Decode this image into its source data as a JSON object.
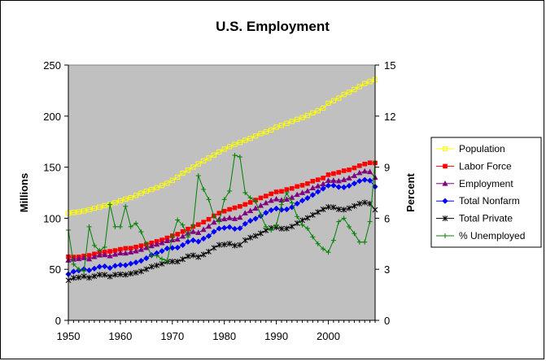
{
  "chart_data": {
    "type": "line",
    "title": "U.S. Employment",
    "xlabel": "",
    "ylabel": "Millions",
    "y2label": "Percent",
    "xlim": [
      1950,
      2009
    ],
    "ylim": [
      0,
      250
    ],
    "y2lim": [
      0,
      15
    ],
    "x_ticks": [
      1950,
      1960,
      1970,
      1980,
      1990,
      2000
    ],
    "y_ticks": [
      0,
      50,
      100,
      150,
      200,
      250
    ],
    "y2_ticks": [
      0,
      3,
      6,
      9,
      12,
      15
    ],
    "grid": false,
    "plot_background": "#c0c0c0",
    "legend_position": "right",
    "x": [
      1950,
      1951,
      1952,
      1953,
      1954,
      1955,
      1956,
      1957,
      1958,
      1959,
      1960,
      1961,
      1962,
      1963,
      1964,
      1965,
      1966,
      1967,
      1968,
      1969,
      1970,
      1971,
      1972,
      1973,
      1974,
      1975,
      1976,
      1977,
      1978,
      1979,
      1980,
      1981,
      1982,
      1983,
      1984,
      1985,
      1986,
      1987,
      1988,
      1989,
      1990,
      1991,
      1992,
      1993,
      1994,
      1995,
      1996,
      1997,
      1998,
      1999,
      2000,
      2001,
      2002,
      2003,
      2004,
      2005,
      2006,
      2007,
      2008,
      2009
    ],
    "series": [
      {
        "name": "Population",
        "axis": "left",
        "color": "#ffff00",
        "marker": "square-open",
        "values": [
          104.9,
          105.6,
          106.2,
          107.1,
          108.3,
          109.7,
          110.9,
          112.3,
          113.7,
          115.3,
          117.2,
          118.8,
          120.2,
          122.4,
          124.5,
          126.5,
          128.1,
          129.9,
          132.0,
          134.3,
          137.1,
          140.2,
          144.1,
          147.1,
          150.1,
          153.2,
          156.2,
          159.0,
          161.9,
          164.9,
          167.7,
          170.1,
          172.3,
          174.2,
          176.4,
          178.2,
          180.6,
          182.8,
          184.6,
          186.4,
          189.2,
          190.9,
          192.8,
          194.8,
          196.8,
          198.6,
          200.6,
          203.1,
          205.2,
          207.8,
          212.6,
          215.1,
          217.6,
          221.2,
          223.4,
          226.1,
          228.8,
          231.9,
          233.8,
          235.8
        ]
      },
      {
        "name": "Labor Force",
        "axis": "left",
        "color": "#ff0000",
        "marker": "square",
        "values": [
          62.2,
          62.0,
          62.1,
          63.0,
          63.6,
          65.0,
          66.6,
          66.9,
          67.6,
          68.4,
          69.6,
          70.5,
          70.6,
          71.8,
          73.1,
          74.5,
          75.8,
          77.3,
          78.7,
          80.7,
          82.8,
          84.4,
          87.0,
          89.4,
          91.9,
          93.8,
          96.2,
          99.0,
          102.3,
          105.0,
          106.9,
          108.7,
          110.2,
          111.6,
          113.5,
          115.5,
          117.8,
          119.9,
          121.7,
          123.9,
          125.8,
          126.3,
          128.1,
          129.2,
          131.1,
          132.3,
          133.9,
          136.3,
          137.7,
          139.4,
          142.6,
          143.7,
          144.9,
          146.5,
          147.4,
          149.3,
          151.4,
          153.1,
          154.3,
          154.1
        ]
      },
      {
        "name": "Employment",
        "axis": "left",
        "color": "#800080",
        "marker": "triangle",
        "values": [
          58.9,
          59.9,
          60.3,
          61.2,
          60.1,
          62.2,
          63.8,
          64.1,
          63.0,
          64.6,
          65.8,
          65.7,
          66.7,
          67.8,
          69.3,
          71.1,
          72.9,
          74.4,
          75.9,
          77.9,
          78.7,
          79.4,
          82.2,
          85.1,
          86.8,
          85.8,
          88.8,
          92.0,
          96.0,
          98.8,
          99.3,
          100.4,
          99.5,
          100.8,
          105.0,
          107.2,
          109.6,
          112.4,
          115.0,
          117.3,
          118.8,
          117.7,
          118.5,
          120.3,
          123.1,
          124.9,
          126.7,
          129.6,
          131.5,
          133.5,
          136.9,
          136.9,
          136.5,
          137.7,
          139.3,
          141.7,
          144.4,
          146.0,
          145.4,
          139.9
        ]
      },
      {
        "name": "Total Nonfarm",
        "axis": "left",
        "color": "#0000ff",
        "marker": "diamond",
        "values": [
          45.2,
          47.8,
          48.8,
          50.2,
          49.0,
          50.7,
          52.5,
          52.9,
          51.3,
          53.4,
          54.2,
          54.0,
          55.5,
          56.7,
          58.3,
          60.8,
          63.9,
          65.8,
          67.9,
          70.4,
          70.9,
          71.2,
          73.7,
          76.9,
          78.4,
          77.1,
          80.0,
          82.6,
          86.8,
          89.9,
          90.5,
          91.3,
          89.6,
          90.2,
          94.5,
          97.5,
          99.5,
          102.2,
          105.3,
          107.9,
          109.5,
          108.3,
          108.7,
          110.8,
          114.3,
          117.3,
          119.7,
          122.8,
          125.9,
          129.0,
          132.0,
          132.1,
          130.6,
          130.3,
          131.8,
          134.0,
          136.4,
          137.6,
          136.8,
          130.9
        ]
      },
      {
        "name": "Total Private",
        "axis": "left",
        "color": "#000000",
        "marker": "star",
        "values": [
          39.2,
          41.5,
          42.0,
          43.1,
          41.7,
          43.2,
          44.7,
          44.6,
          42.9,
          44.7,
          45.1,
          44.7,
          45.8,
          46.7,
          48.0,
          50.1,
          52.5,
          53.8,
          55.4,
          57.4,
          57.6,
          57.5,
          59.8,
          62.7,
          63.7,
          62.0,
          64.5,
          67.3,
          71.0,
          73.9,
          74.2,
          75.1,
          73.2,
          73.9,
          78.4,
          81.0,
          82.7,
          85.2,
          88.1,
          90.4,
          91.1,
          89.8,
          89.9,
          91.9,
          95.1,
          98.0,
          100.3,
          103.2,
          106.0,
          108.7,
          111.0,
          110.7,
          108.8,
          108.4,
          109.8,
          112.0,
          114.3,
          115.4,
          114.3,
          108.3
        ]
      },
      {
        "name": "% Unemployed",
        "axis": "right",
        "color": "#008000",
        "marker": "plus",
        "values": [
          5.3,
          3.3,
          3.0,
          2.9,
          5.5,
          4.4,
          4.1,
          4.3,
          6.8,
          5.5,
          5.5,
          6.7,
          5.5,
          5.7,
          5.2,
          4.5,
          3.8,
          3.8,
          3.6,
          3.5,
          4.9,
          5.9,
          5.6,
          4.9,
          5.6,
          8.5,
          7.7,
          7.1,
          6.1,
          5.8,
          7.1,
          7.6,
          9.7,
          9.6,
          7.5,
          7.2,
          7.0,
          6.2,
          5.5,
          5.3,
          5.6,
          6.8,
          7.5,
          6.9,
          6.1,
          5.6,
          5.4,
          4.9,
          4.5,
          4.2,
          4.0,
          4.7,
          5.8,
          6.0,
          5.5,
          5.1,
          4.6,
          4.6,
          5.8,
          9.3
        ]
      }
    ]
  }
}
